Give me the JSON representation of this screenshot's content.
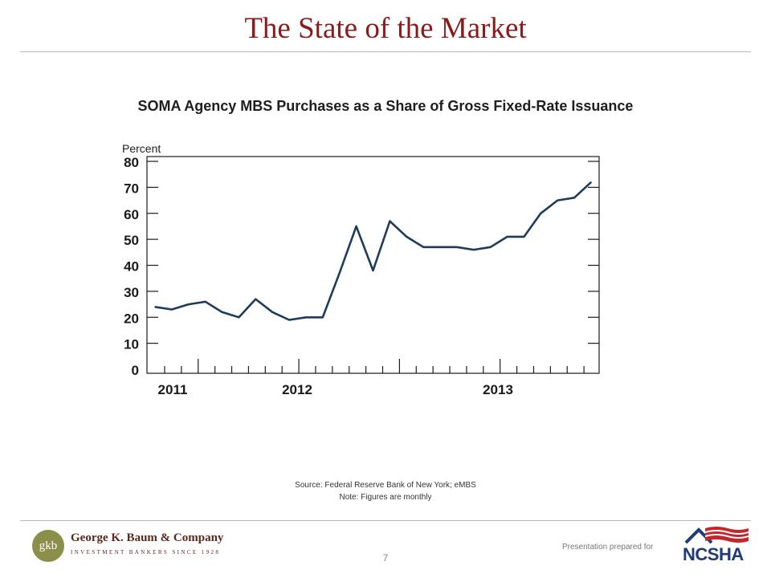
{
  "slide": {
    "title": "The State of the Market",
    "source": "Source: Federal Reserve Bank of New York; eMBS",
    "note": "Note: Figures are monthly",
    "page_number": "7"
  },
  "footer": {
    "company_initials": "gkb",
    "company_name": "George K. Baum & Company",
    "company_tagline": "INVESTMENT BANKERS SINCE 1928",
    "prepared_for": "Presentation prepared for",
    "client_logo_text": "NCSHA"
  },
  "colors": {
    "title": "#8b1a1a",
    "line": "#1f3b5b",
    "axis": "#1a1a1a"
  },
  "chart_data": {
    "type": "line",
    "title": "SOMA Agency MBS Purchases as a Share of Gross Fixed-Rate Issuance",
    "ylabel": "Percent",
    "xlabel": "",
    "ylim": [
      0,
      80
    ],
    "yticks": [
      0,
      10,
      20,
      30,
      40,
      50,
      60,
      70,
      80
    ],
    "xtick_labels": [
      "2011",
      "2012",
      "2013"
    ],
    "x": [
      0,
      1,
      2,
      3,
      4,
      5,
      6,
      7,
      8,
      9,
      10,
      11,
      12,
      13,
      14,
      15,
      16,
      17,
      18,
      19,
      20,
      21,
      22,
      23,
      24,
      25,
      26
    ],
    "series": [
      {
        "values": [
          24,
          23,
          25,
          26,
          22,
          20,
          27,
          22,
          19,
          20,
          20,
          37,
          55,
          38,
          57,
          51,
          47,
          47,
          47,
          46,
          47,
          51,
          51,
          60,
          65,
          66,
          72
        ]
      }
    ]
  }
}
